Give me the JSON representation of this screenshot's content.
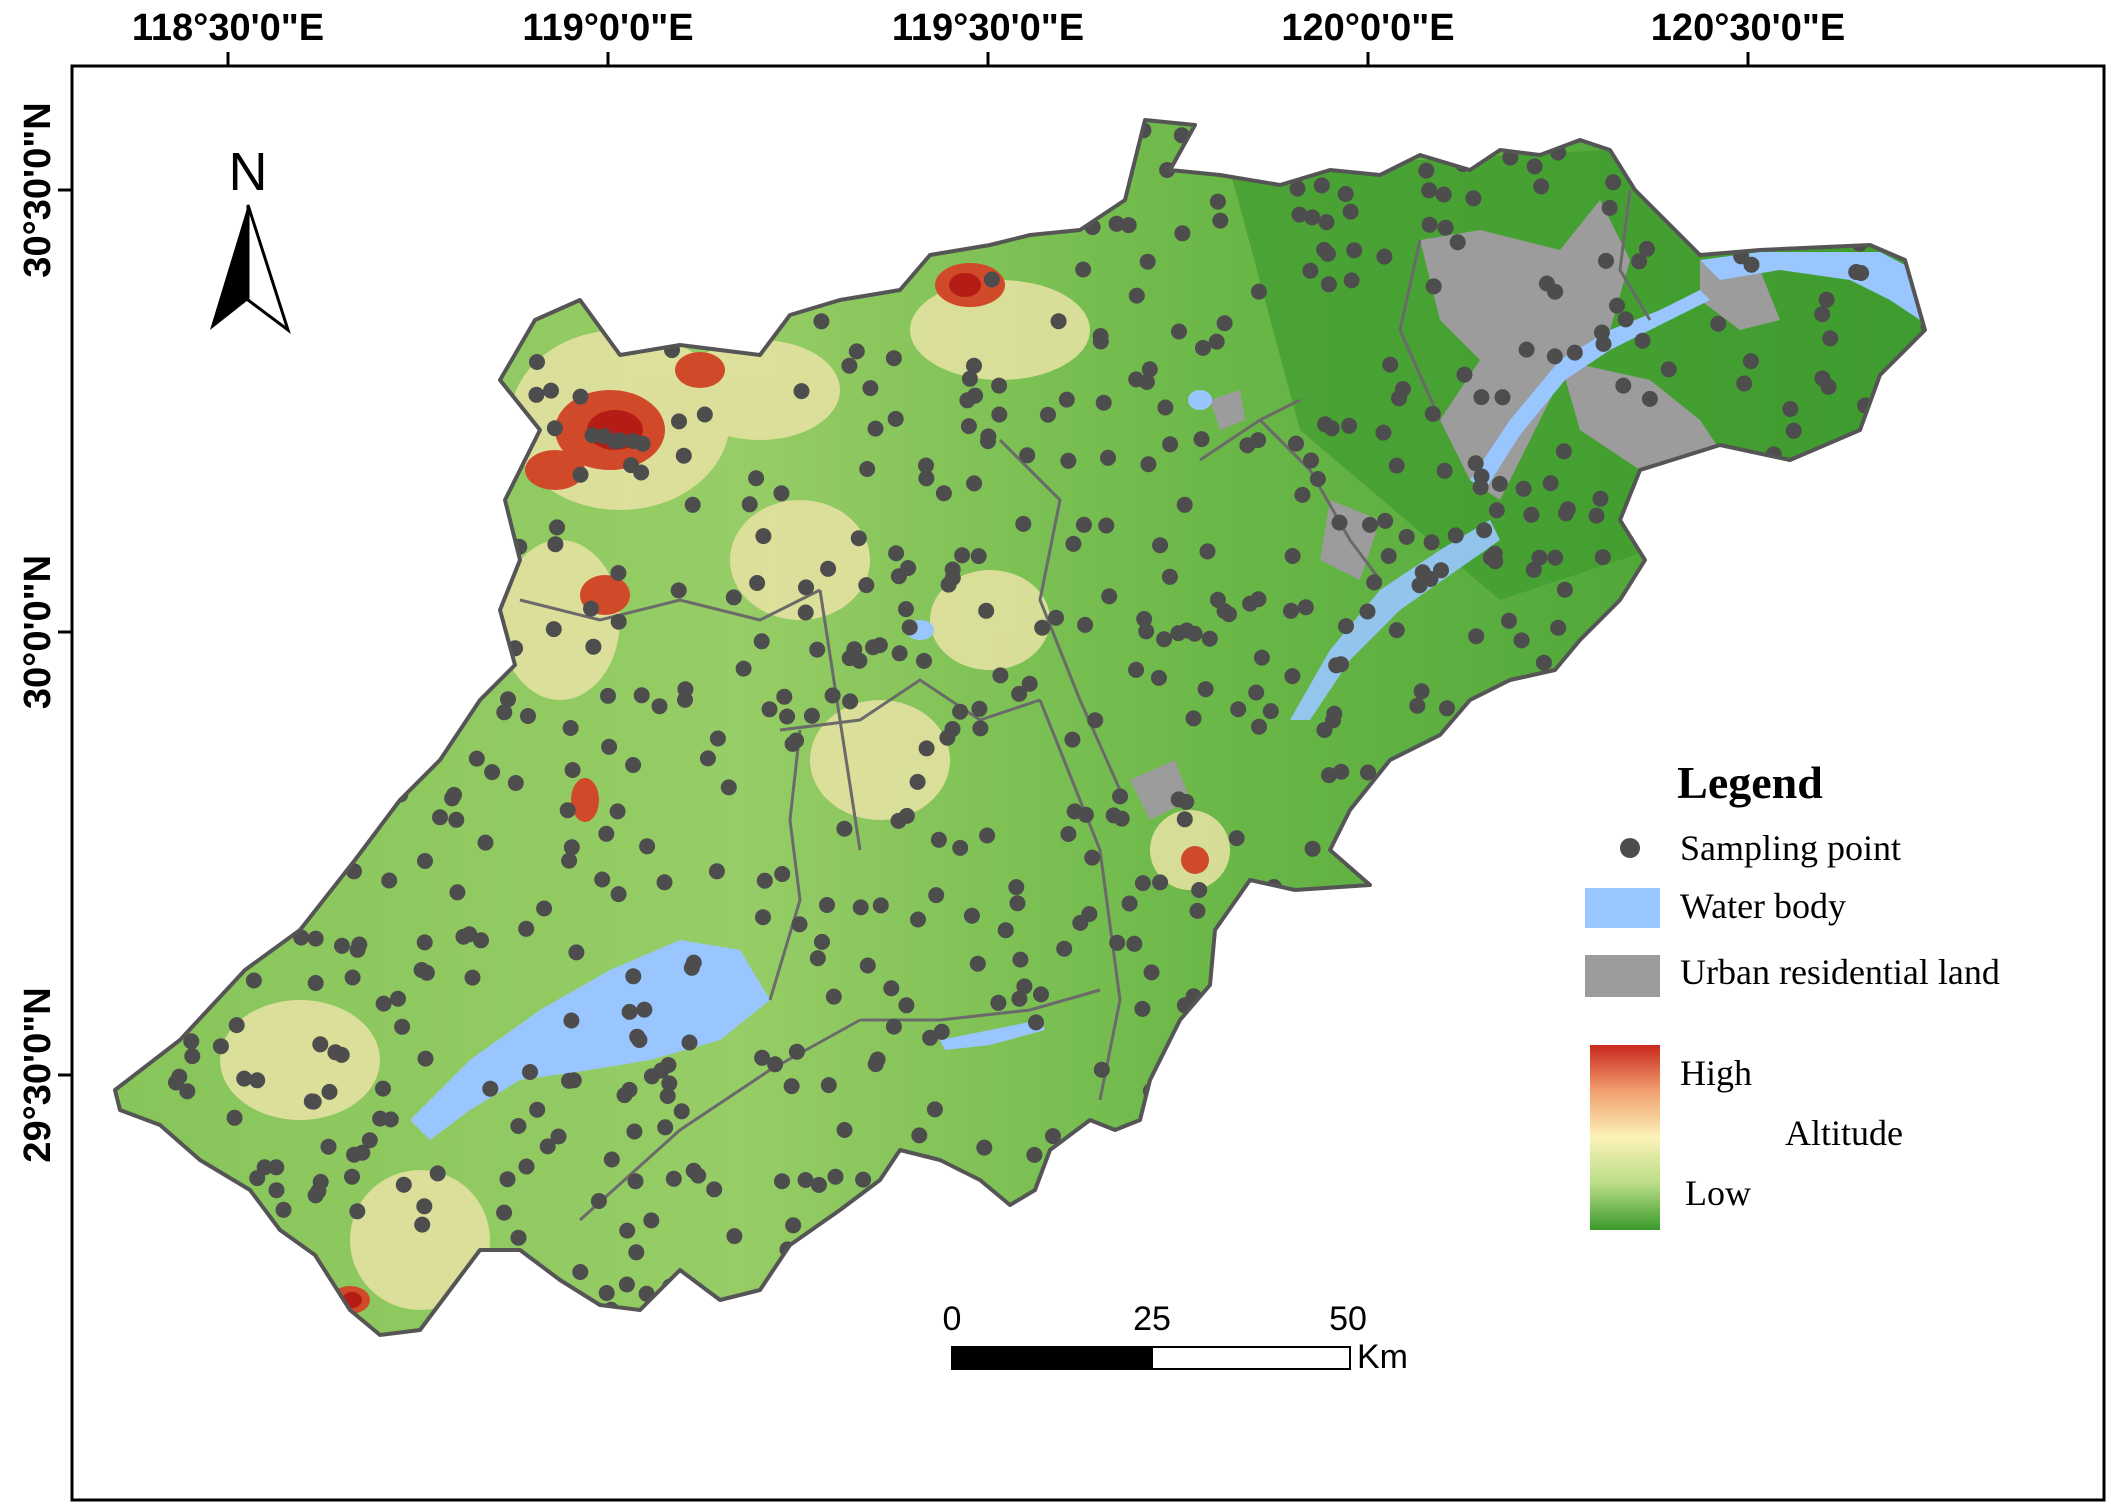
{
  "map": {
    "longitude_labels": [
      "118°30'0\"E",
      "119°0'0\"E",
      "119°30'0\"E",
      "120°0'0\"E",
      "120°30'0\"E"
    ],
    "latitude_labels": [
      "30°30'0\"N",
      "30°0'0\"N",
      "29°30'0\"N"
    ],
    "north_arrow": {
      "label": "N",
      "icon": "north-arrow-icon"
    },
    "legend": {
      "title": "Legend",
      "items": [
        {
          "label": "Sampling point",
          "symbol": "dot",
          "color": "#4d4d4d"
        },
        {
          "label": "Water body",
          "symbol": "rect",
          "color": "#99c6ff"
        },
        {
          "label": "Urban residential land",
          "symbol": "rect",
          "color": "#9c9c9c"
        }
      ],
      "ramp": {
        "high_label": "High",
        "low_label": "Low",
        "title": "Altitude",
        "colors": [
          "#c8281e",
          "#f2a070",
          "#fbf2b8",
          "#b9dd86",
          "#3a9a2a"
        ]
      }
    },
    "scale_bar": {
      "ticks": [
        "0",
        "25",
        "50"
      ],
      "unit": "Km"
    },
    "colors": {
      "lowland": "#4fa83a",
      "midland": "#8fc95c",
      "upland": "#e9e3a4",
      "highland": "#c8281e",
      "water": "#99c6ff",
      "urban": "#9c9c9c",
      "boundary": "#666666",
      "point": "#4d4d4d"
    }
  }
}
